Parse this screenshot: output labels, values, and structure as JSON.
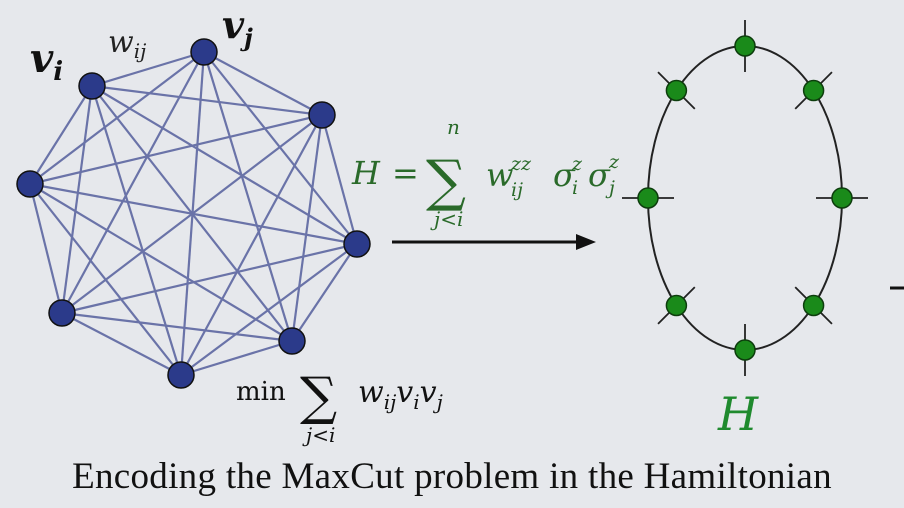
{
  "graph": {
    "label_vi": "v",
    "label_vi_sub": "i",
    "label_vj": "v",
    "label_vj_sub": "j",
    "label_w": "w",
    "label_w_sub": "ij",
    "node_color": "#2b3a8a",
    "edge_color": "#6a73a8"
  },
  "objective": {
    "min": "min",
    "sigma": "∑",
    "sub": "j<i",
    "w": "w",
    "w_sub": "ij",
    "v1": "v",
    "v1_sub": "i",
    "v2": "v",
    "v2_sub": "j"
  },
  "hamiltonian_formula": {
    "lhs": "H",
    "eq": "=",
    "sigma": "∑",
    "upper": "n",
    "lower": "j<i",
    "w": "w",
    "w_sup": "zz",
    "w_sub": "ij",
    "s1": "σ",
    "s1_sup": "z",
    "s1_sub": "i",
    "s2": "σ",
    "s2_sup": "z",
    "s2_sub": "j",
    "color": "#2a6a2a"
  },
  "ring": {
    "label": "H",
    "label_color": "#1f8a2e",
    "node_color": "#1a8a1a"
  },
  "caption": "Encoding the MaxCut problem in the Hamiltonian"
}
